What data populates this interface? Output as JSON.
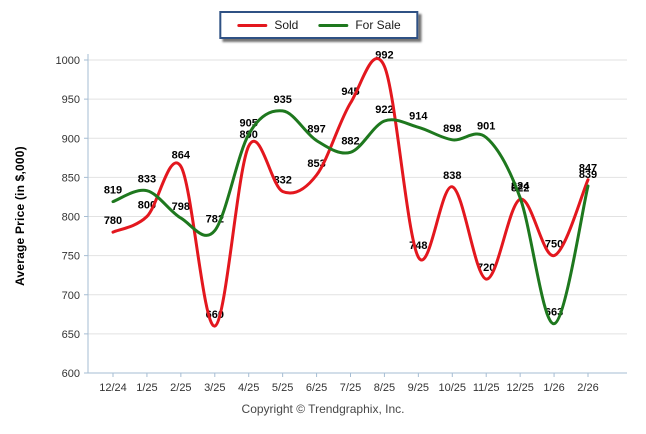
{
  "chart_data": {
    "type": "line",
    "categories": [
      "12/24",
      "1/25",
      "2/25",
      "3/25",
      "4/25",
      "5/25",
      "6/25",
      "7/25",
      "8/25",
      "9/25",
      "10/25",
      "11/25",
      "12/25",
      "1/26",
      "2/26"
    ],
    "series": [
      {
        "name": "Sold",
        "color": "#e3171e",
        "values": [
          780,
          800,
          864,
          660,
          890,
          832,
          853,
          945,
          992,
          748,
          838,
          720,
          822,
          750,
          847
        ]
      },
      {
        "name": "For Sale",
        "color": "#1e781e",
        "values": [
          819,
          833,
          798,
          782,
          905,
          935,
          897,
          882,
          922,
          914,
          898,
          901,
          824,
          663,
          839
        ]
      }
    ],
    "title": "",
    "xlabel": "",
    "ylabel": "Average Price (in $,000)",
    "ylim": [
      600,
      1000
    ],
    "yticks": [
      600,
      650,
      700,
      750,
      800,
      850,
      900,
      950,
      1000
    ],
    "grid": true,
    "legend_position": "top-center",
    "data_labels": true
  },
  "legend": {
    "items": [
      {
        "label": "Sold"
      },
      {
        "label": "For Sale"
      }
    ]
  },
  "axis_style": {
    "grid_color": "#e2e2e2",
    "axis_color": "#a6bdd3",
    "tick_text_color": "#333333",
    "data_label_color": "#000000"
  },
  "footer": {
    "copyright": "Copyright © Trendgraphix, Inc."
  }
}
